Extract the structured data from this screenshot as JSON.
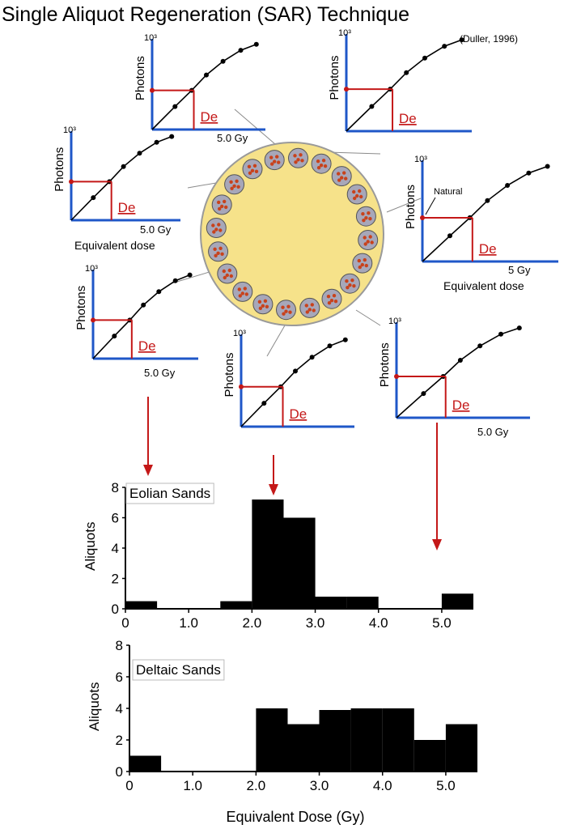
{
  "title": "Single Aliquot  Regeneration (SAR) Technique",
  "citation": "(Duller, 1996)",
  "colors": {
    "axis": "#1f57c8",
    "de_line": "#c41818",
    "curve": "#000000",
    "disc_fill": "#f6e28a",
    "disc_stroke": "#9a9a9a",
    "grain": "#a7a7b9",
    "crystal": "#c8421c",
    "arrow": "#c41818",
    "bar": "#000000"
  },
  "sar_curves": {
    "ylabel": "Photons",
    "de_label": "De",
    "top_tick": "10³",
    "dose_label": "5.0 Gy",
    "dose_label_alt": "5 Gy",
    "xlabel": "Equivalent dose",
    "natural_label": "Natural",
    "panels": [
      {
        "position": "top-left"
      },
      {
        "position": "top-right"
      },
      {
        "position": "middle-left"
      },
      {
        "position": "right"
      },
      {
        "position": "lower-left"
      },
      {
        "position": "lower-center"
      },
      {
        "position": "lower-right"
      }
    ]
  },
  "chart_data": [
    {
      "type": "bar",
      "title": "Eolian Sands",
      "ylabel": "Aliquots",
      "xlabel": "",
      "xlim": [
        0,
        5.5
      ],
      "ylim": [
        0,
        8
      ],
      "yticks": [
        "0",
        "2",
        "4",
        "6",
        "8"
      ],
      "xticks": [
        "0",
        "1.0",
        "2.0",
        "3.0",
        "4.0",
        "5.0"
      ],
      "bins": [
        [
          0,
          0.5
        ],
        [
          0.5,
          1.0
        ],
        [
          1.0,
          1.5
        ],
        [
          1.5,
          2.0
        ],
        [
          2.0,
          2.5
        ],
        [
          2.5,
          3.0
        ],
        [
          3.0,
          3.5
        ],
        [
          3.5,
          4.0
        ],
        [
          4.0,
          4.5
        ],
        [
          4.5,
          5.0
        ],
        [
          5.0,
          5.5
        ]
      ],
      "values": [
        0.5,
        0,
        0,
        0.5,
        7.2,
        6.0,
        0.8,
        0.8,
        0,
        0,
        1.0
      ]
    },
    {
      "type": "bar",
      "title": "Deltaic Sands",
      "ylabel": "Aliquots",
      "xlabel": "Equivalent Dose (Gy)",
      "xlim": [
        0,
        5.5
      ],
      "ylim": [
        0,
        8
      ],
      "yticks": [
        "0",
        "2",
        "4",
        "6",
        "8"
      ],
      "xticks": [
        "0",
        "1.0",
        "2.0",
        "3.0",
        "4.0",
        "5.0"
      ],
      "bins": [
        [
          0,
          0.5
        ],
        [
          0.5,
          1.0
        ],
        [
          1.0,
          1.5
        ],
        [
          1.5,
          2.0
        ],
        [
          2.0,
          2.5
        ],
        [
          2.5,
          3.0
        ],
        [
          3.0,
          3.5
        ],
        [
          3.5,
          4.0
        ],
        [
          4.0,
          4.5
        ],
        [
          4.5,
          5.0
        ],
        [
          5.0,
          5.5
        ]
      ],
      "values": [
        1.0,
        0,
        0,
        0,
        4.0,
        3.0,
        3.9,
        4.0,
        4.0,
        2.0,
        3.0
      ]
    }
  ]
}
